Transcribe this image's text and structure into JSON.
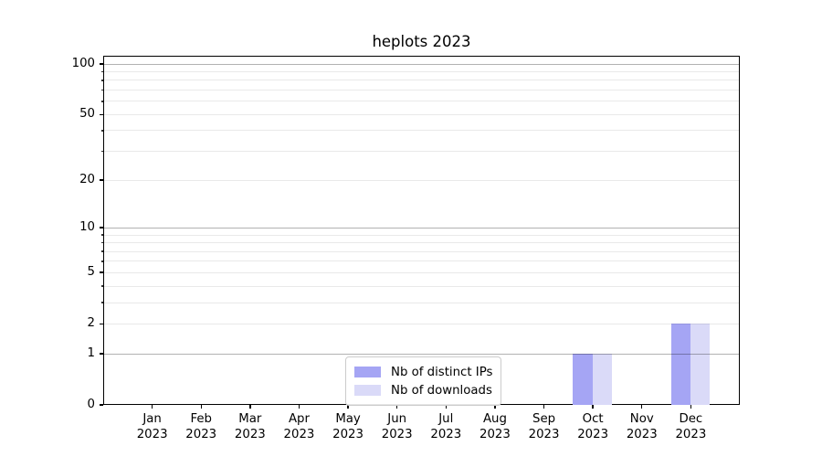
{
  "chart_data": {
    "type": "bar",
    "title": "heplots 2023",
    "categories": [
      "Jan",
      "Feb",
      "Mar",
      "Apr",
      "May",
      "Jun",
      "Jul",
      "Aug",
      "Sep",
      "Oct",
      "Nov",
      "Dec"
    ],
    "category_year": "2023",
    "series": [
      {
        "name": "Nb of distinct IPs",
        "color": "#a5a5f4",
        "values": [
          0,
          0,
          0,
          0,
          0,
          0,
          0,
          0,
          0,
          1,
          0,
          2
        ]
      },
      {
        "name": "Nb of downloads",
        "color": "#dadaf8",
        "values": [
          0,
          0,
          0,
          0,
          0,
          0,
          0,
          0,
          0,
          1,
          0,
          2
        ]
      }
    ],
    "xlabel": "",
    "ylabel": "",
    "yscale": "log1p",
    "ylim": [
      0,
      112
    ],
    "y_tick_labels": [
      0,
      1,
      2,
      5,
      10,
      20,
      50,
      100
    ],
    "y_major_gridlines": [
      1,
      10,
      100
    ],
    "y_minor_gridlines": [
      2,
      3,
      4,
      5,
      6,
      7,
      8,
      9,
      20,
      30,
      40,
      50,
      60,
      70,
      80,
      90
    ],
    "grid": "horizontal, gridlines drawn over bars",
    "legend_position": "lower center",
    "bar_width_fraction": 0.4
  },
  "colors": {
    "major_grid": "#b3b3b3",
    "minor_grid": "#e9e9e9",
    "axis": "#000000",
    "text": "#000000",
    "legend_border": "#cccccc",
    "background": "#ffffff"
  }
}
